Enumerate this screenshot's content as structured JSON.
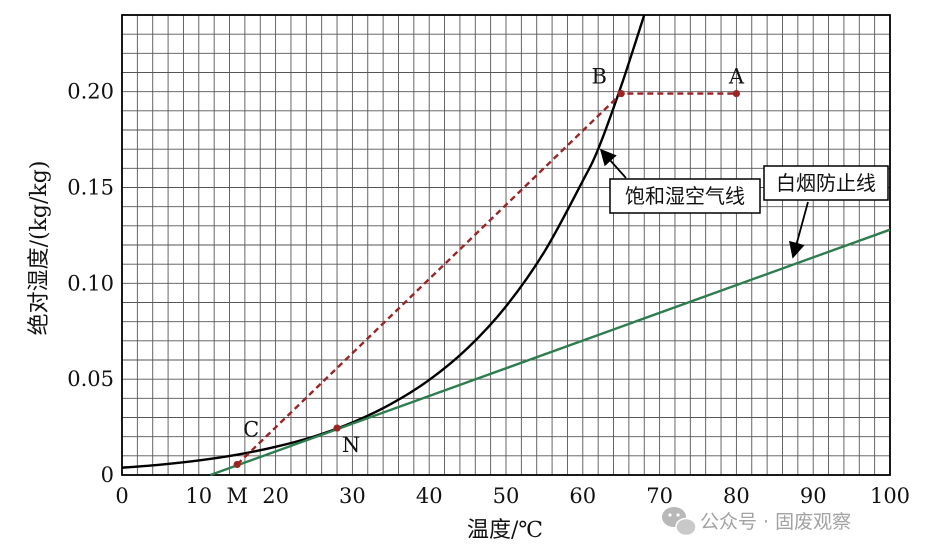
{
  "chart_data": {
    "type": "line",
    "xlabel": "温度/℃",
    "ylabel": "绝对湿度/(kg/kg)",
    "xlim": [
      0,
      100
    ],
    "ylim": [
      0,
      0.24
    ],
    "grid": true,
    "x_ticks": [
      "0",
      "10",
      "20",
      "30",
      "40",
      "50",
      "60",
      "70",
      "80",
      "90",
      "100"
    ],
    "y_ticks": [
      "0",
      "0.05",
      "0.10",
      "0.15",
      "0.20"
    ],
    "extra_x_labels": [
      {
        "text": "M",
        "x": 15
      }
    ],
    "colors": {
      "saturation": "#000000",
      "white_smoke": "#2e7d4f",
      "process": "#9b2424"
    },
    "series": [
      {
        "name": "饱和湿空气线",
        "style": "solid",
        "x": [
          0,
          5,
          10,
          15,
          20,
          25,
          30,
          35,
          40,
          45,
          50,
          55,
          60,
          62,
          65,
          68
        ],
        "y": [
          0.0038,
          0.0054,
          0.0076,
          0.0106,
          0.0147,
          0.0201,
          0.0274,
          0.037,
          0.0496,
          0.0662,
          0.088,
          0.1165,
          0.1535,
          0.17,
          0.203,
          0.24
        ]
      },
      {
        "name": "白烟防止线",
        "style": "solid",
        "x": [
          11.5,
          100
        ],
        "y": [
          0.0,
          0.128
        ]
      },
      {
        "style": "dashed",
        "x": [
          15,
          65,
          80
        ],
        "y": [
          0.0055,
          0.199,
          0.199
        ]
      }
    ],
    "points": [
      {
        "label": "A",
        "x": 80,
        "y": 0.199
      },
      {
        "label": "B",
        "x": 65,
        "y": 0.199
      },
      {
        "label": "C",
        "x": 15,
        "y": 0.0055
      },
      {
        "label": "N",
        "x": 28,
        "y": 0.0245
      }
    ],
    "annotations": [
      {
        "text": "饱和湿空气线",
        "target": {
          "x": 62,
          "y": 0.17
        }
      },
      {
        "text": "白烟防止线",
        "target": {
          "x": 87.5,
          "y": 0.11
        }
      }
    ]
  },
  "watermark": {
    "text": "公众号 · 固废观察",
    "icon": "wechat-icon"
  }
}
